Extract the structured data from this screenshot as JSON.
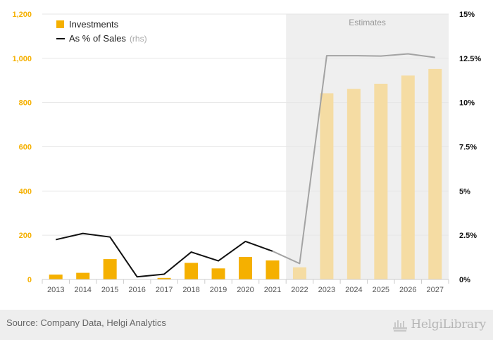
{
  "chart_data": {
    "type": "bar",
    "categories": [
      "2013",
      "2014",
      "2015",
      "2016",
      "2017",
      "2018",
      "2019",
      "2020",
      "2021",
      "2022",
      "2023",
      "2024",
      "2025",
      "2026",
      "2027"
    ],
    "estimate_start_index": 10,
    "series": [
      {
        "name": "Investments",
        "kind": "bar",
        "axis": "left",
        "values": [
          22,
          30,
          92,
          0,
          7,
          75,
          50,
          102,
          86,
          55,
          842,
          862,
          885,
          922,
          952
        ]
      },
      {
        "name": "As % of Sales",
        "kind": "line",
        "axis": "right",
        "values": [
          2.25,
          2.6,
          2.4,
          0.15,
          0.3,
          1.55,
          1.05,
          2.15,
          1.6,
          0.9,
          12.65,
          12.65,
          12.63,
          12.75,
          12.55
        ]
      }
    ],
    "left_axis": {
      "ylim": [
        0,
        1200
      ],
      "ticks": [
        0,
        200,
        400,
        600,
        800,
        1000,
        1200
      ],
      "tick_labels": [
        "0",
        "200",
        "400",
        "600",
        "800",
        "1,000",
        "1,200"
      ]
    },
    "right_axis": {
      "ylim": [
        0,
        15
      ],
      "ticks": [
        0,
        2.5,
        5,
        7.5,
        10,
        12.5,
        15
      ],
      "tick_labels": [
        "0%",
        "2.5%",
        "5%",
        "7.5%",
        "10%",
        "12.5%",
        "15%"
      ]
    },
    "legend": {
      "position": "top-left",
      "items": [
        {
          "label": "Investments",
          "suffix": ""
        },
        {
          "label": "As % of Sales",
          "suffix": "(rhs)"
        }
      ]
    },
    "estimates_label": "Estimates",
    "grid": true
  },
  "colors": {
    "bar": "#f5b000",
    "bar_estimate": "#f5dca3",
    "line": "#111111",
    "line_estimate": "#a3a3a3",
    "shade": "#efefef",
    "left_axis_text": "#f5b000",
    "right_axis_text": "#111111",
    "grid": "#e6e6e6"
  },
  "footer": {
    "source": "Source: Company Data, Helgi Analytics",
    "logo_text": "HelgiLibrary"
  },
  "icons": {
    "logo": "helgi-library-logo-icon"
  }
}
